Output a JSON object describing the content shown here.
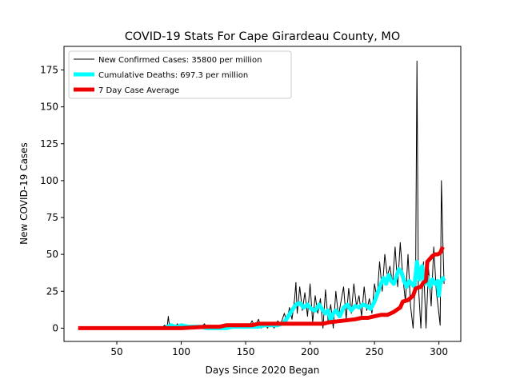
{
  "chart_data": {
    "type": "line",
    "title": "COVID-19 Stats For Cape Girardeau County, MO",
    "xlabel": "Days Since 2020 Began",
    "ylabel": "New COVID-19 Cases",
    "xlim": [
      9,
      317
    ],
    "ylim": [
      -9,
      191
    ],
    "xticks": [
      50,
      100,
      150,
      200,
      250,
      300
    ],
    "yticks": [
      0,
      25,
      50,
      75,
      100,
      125,
      150,
      175
    ],
    "legend_position": "top-left",
    "grid": false,
    "series": [
      {
        "name": "New Confirmed Cases: 35800 per million",
        "color": "#000000",
        "points": [
          [
            20,
            0
          ],
          [
            30,
            0
          ],
          [
            40,
            0
          ],
          [
            50,
            0
          ],
          [
            60,
            0
          ],
          [
            70,
            0
          ],
          [
            80,
            0
          ],
          [
            85,
            0
          ],
          [
            87,
            2
          ],
          [
            89,
            0
          ],
          [
            90,
            8
          ],
          [
            91,
            0
          ],
          [
            93,
            2
          ],
          [
            95,
            0
          ],
          [
            97,
            3
          ],
          [
            99,
            0
          ],
          [
            101,
            2
          ],
          [
            103,
            1
          ],
          [
            105,
            0
          ],
          [
            108,
            2
          ],
          [
            110,
            0
          ],
          [
            112,
            1
          ],
          [
            115,
            0
          ],
          [
            118,
            3
          ],
          [
            120,
            0
          ],
          [
            123,
            2
          ],
          [
            125,
            0
          ],
          [
            128,
            1
          ],
          [
            130,
            0
          ],
          [
            133,
            2
          ],
          [
            135,
            0
          ],
          [
            138,
            3
          ],
          [
            140,
            1
          ],
          [
            143,
            0
          ],
          [
            145,
            2
          ],
          [
            148,
            0
          ],
          [
            150,
            3
          ],
          [
            152,
            0
          ],
          [
            155,
            5
          ],
          [
            157,
            1
          ],
          [
            160,
            6
          ],
          [
            162,
            0
          ],
          [
            165,
            3
          ],
          [
            167,
            0
          ],
          [
            170,
            4
          ],
          [
            172,
            0
          ],
          [
            175,
            5
          ],
          [
            177,
            2
          ],
          [
            180,
            10
          ],
          [
            182,
            4
          ],
          [
            184,
            14
          ],
          [
            186,
            6
          ],
          [
            188,
            20
          ],
          [
            189,
            31
          ],
          [
            190,
            10
          ],
          [
            192,
            28
          ],
          [
            194,
            12
          ],
          [
            196,
            24
          ],
          [
            198,
            8
          ],
          [
            200,
            30
          ],
          [
            202,
            4
          ],
          [
            204,
            22
          ],
          [
            206,
            10
          ],
          [
            208,
            20
          ],
          [
            210,
            0
          ],
          [
            212,
            26
          ],
          [
            214,
            5
          ],
          [
            216,
            16
          ],
          [
            218,
            0
          ],
          [
            220,
            25
          ],
          [
            222,
            8
          ],
          [
            224,
            18
          ],
          [
            226,
            28
          ],
          [
            228,
            6
          ],
          [
            230,
            27
          ],
          [
            232,
            10
          ],
          [
            234,
            30
          ],
          [
            236,
            15
          ],
          [
            238,
            22
          ],
          [
            240,
            8
          ],
          [
            242,
            28
          ],
          [
            244,
            12
          ],
          [
            246,
            20
          ],
          [
            248,
            10
          ],
          [
            250,
            30
          ],
          [
            252,
            20
          ],
          [
            254,
            45
          ],
          [
            256,
            25
          ],
          [
            258,
            50
          ],
          [
            260,
            35
          ],
          [
            262,
            42
          ],
          [
            264,
            30
          ],
          [
            266,
            55
          ],
          [
            268,
            28
          ],
          [
            270,
            58
          ],
          [
            272,
            35
          ],
          [
            274,
            18
          ],
          [
            276,
            50
          ],
          [
            278,
            15
          ],
          [
            280,
            0
          ],
          [
            282,
            40
          ],
          [
            283,
            181
          ],
          [
            284,
            30
          ],
          [
            286,
            0
          ],
          [
            288,
            45
          ],
          [
            290,
            0
          ],
          [
            292,
            40
          ],
          [
            294,
            15
          ],
          [
            296,
            55
          ],
          [
            298,
            25
          ],
          [
            300,
            10
          ],
          [
            301,
            2
          ],
          [
            302,
            100
          ],
          [
            303,
            60
          ],
          [
            304,
            30
          ]
        ]
      },
      {
        "name": "Cumulative Deaths: 697.3 per million",
        "color": "#00ffff",
        "points": [
          [
            88,
            1
          ],
          [
            90,
            1
          ],
          [
            92,
            2
          ],
          [
            95,
            1
          ],
          [
            98,
            1
          ],
          [
            100,
            2
          ],
          [
            105,
            1
          ],
          [
            110,
            1
          ],
          [
            115,
            1
          ],
          [
            120,
            0
          ],
          [
            125,
            0
          ],
          [
            130,
            0
          ],
          [
            135,
            0
          ],
          [
            140,
            1
          ],
          [
            145,
            1
          ],
          [
            150,
            1
          ],
          [
            155,
            1
          ],
          [
            160,
            1
          ],
          [
            165,
            2
          ],
          [
            170,
            2
          ],
          [
            175,
            2
          ],
          [
            178,
            3
          ],
          [
            180,
            4
          ],
          [
            183,
            8
          ],
          [
            186,
            12
          ],
          [
            189,
            16
          ],
          [
            192,
            17
          ],
          [
            195,
            14
          ],
          [
            198,
            16
          ],
          [
            201,
            13
          ],
          [
            204,
            12
          ],
          [
            207,
            16
          ],
          [
            210,
            12
          ],
          [
            212,
            10
          ],
          [
            214,
            12
          ],
          [
            216,
            5
          ],
          [
            218,
            10
          ],
          [
            220,
            12
          ],
          [
            223,
            8
          ],
          [
            226,
            14
          ],
          [
            229,
            16
          ],
          [
            232,
            12
          ],
          [
            235,
            15
          ],
          [
            238,
            14
          ],
          [
            241,
            16
          ],
          [
            244,
            15
          ],
          [
            247,
            13
          ],
          [
            250,
            18
          ],
          [
            253,
            25
          ],
          [
            255,
            30
          ],
          [
            257,
            34
          ],
          [
            259,
            30
          ],
          [
            261,
            36
          ],
          [
            263,
            32
          ],
          [
            265,
            30
          ],
          [
            267,
            35
          ],
          [
            269,
            40
          ],
          [
            271,
            38
          ],
          [
            273,
            32
          ],
          [
            275,
            28
          ],
          [
            277,
            32
          ],
          [
            279,
            30
          ],
          [
            281,
            28
          ],
          [
            283,
            45
          ],
          [
            285,
            33
          ],
          [
            287,
            42
          ],
          [
            289,
            30
          ],
          [
            291,
            35
          ],
          [
            293,
            28
          ],
          [
            295,
            33
          ],
          [
            297,
            30
          ],
          [
            299,
            32
          ],
          [
            300,
            22
          ],
          [
            301,
            30
          ],
          [
            302,
            32
          ],
          [
            303,
            34
          ],
          [
            304,
            32
          ]
        ]
      },
      {
        "name": "7 Day Case Average",
        "color": "#ee0000",
        "points": [
          [
            20,
            0
          ],
          [
            60,
            0
          ],
          [
            100,
            0
          ],
          [
            110,
            0.5
          ],
          [
            120,
            1
          ],
          [
            130,
            1
          ],
          [
            135,
            2
          ],
          [
            145,
            2
          ],
          [
            155,
            2
          ],
          [
            160,
            3
          ],
          [
            170,
            3
          ],
          [
            180,
            3
          ],
          [
            190,
            3
          ],
          [
            200,
            3
          ],
          [
            210,
            3
          ],
          [
            215,
            4
          ],
          [
            225,
            5
          ],
          [
            235,
            6
          ],
          [
            240,
            7
          ],
          [
            245,
            7
          ],
          [
            250,
            8
          ],
          [
            255,
            9
          ],
          [
            260,
            9
          ],
          [
            265,
            11
          ],
          [
            270,
            14
          ],
          [
            272,
            18
          ],
          [
            276,
            19
          ],
          [
            280,
            22
          ],
          [
            282,
            27
          ],
          [
            286,
            28
          ],
          [
            288,
            31
          ],
          [
            290,
            32
          ],
          [
            291,
            45
          ],
          [
            293,
            47
          ],
          [
            295,
            49
          ],
          [
            297,
            50
          ],
          [
            299,
            50
          ],
          [
            301,
            51
          ],
          [
            303,
            55
          ]
        ]
      }
    ]
  }
}
